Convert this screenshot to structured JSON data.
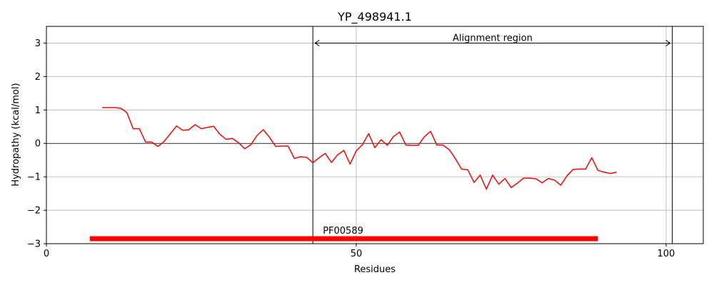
{
  "chart_data": {
    "type": "line",
    "title": "YP_498941.1",
    "xlabel": "Residues",
    "ylabel": "Hydropathy (kcal/mol)",
    "xlim": [
      0,
      106
    ],
    "ylim": [
      -3,
      3.5
    ],
    "xticks": [
      0,
      50,
      100
    ],
    "yticks": [
      -3,
      -2,
      -1,
      0,
      1,
      2,
      3
    ],
    "xtick_labels": [
      "0",
      "50",
      "100"
    ],
    "ytick_labels": [
      "−3",
      "−2",
      "−1",
      "0",
      "1",
      "2",
      "3"
    ],
    "grid": true,
    "series": [
      {
        "color": "#ff0000",
        "x": [
          9,
          10,
          11,
          12,
          13,
          14,
          15,
          16,
          17,
          18,
          19,
          20,
          21,
          22,
          23,
          24,
          25,
          26,
          27,
          28,
          29,
          30,
          31,
          32,
          33,
          34,
          35,
          36,
          37,
          38,
          39,
          40,
          41,
          42,
          43,
          44,
          45,
          46,
          47,
          48,
          49,
          50,
          51,
          52,
          53,
          54,
          55,
          56,
          57,
          58,
          59,
          60,
          61,
          62,
          63,
          64,
          65,
          66,
          67,
          68,
          69,
          70,
          71,
          72,
          73,
          74,
          75,
          76,
          77,
          78,
          79,
          80,
          81,
          82,
          83,
          84,
          85,
          86,
          87,
          88,
          89,
          90,
          91,
          92
        ],
        "y": [
          1.07,
          1.07,
          1.07,
          1.05,
          0.92,
          0.44,
          0.44,
          0.04,
          0.04,
          -0.09,
          0.06,
          0.29,
          0.52,
          0.39,
          0.41,
          0.56,
          0.44,
          0.48,
          0.51,
          0.27,
          0.12,
          0.15,
          0.02,
          -0.16,
          -0.04,
          0.24,
          0.41,
          0.18,
          -0.09,
          -0.08,
          -0.08,
          -0.45,
          -0.4,
          -0.42,
          -0.58,
          -0.43,
          -0.3,
          -0.57,
          -0.34,
          -0.21,
          -0.62,
          -0.22,
          -0.04,
          0.29,
          -0.13,
          0.11,
          -0.06,
          0.2,
          0.34,
          -0.05,
          -0.06,
          -0.06,
          0.2,
          0.36,
          -0.05,
          -0.05,
          -0.19,
          -0.46,
          -0.77,
          -0.79,
          -1.17,
          -0.95,
          -1.37,
          -0.95,
          -1.22,
          -1.05,
          -1.32,
          -1.19,
          -1.04,
          -1.04,
          -1.06,
          -1.18,
          -1.05,
          -1.1,
          -1.25,
          -0.97,
          -0.78,
          -0.77,
          -0.77,
          -0.43,
          -0.81,
          -0.86,
          -0.9,
          -0.86
        ]
      }
    ],
    "vlines": [
      43,
      101
    ],
    "hline": 0,
    "alignment": {
      "label": "Alignment region",
      "start": 43,
      "end": 101,
      "y": 3
    },
    "domain": {
      "label": "PF00589",
      "start": 7,
      "end": 89,
      "y": -2.85,
      "color": "#ff0000"
    }
  }
}
